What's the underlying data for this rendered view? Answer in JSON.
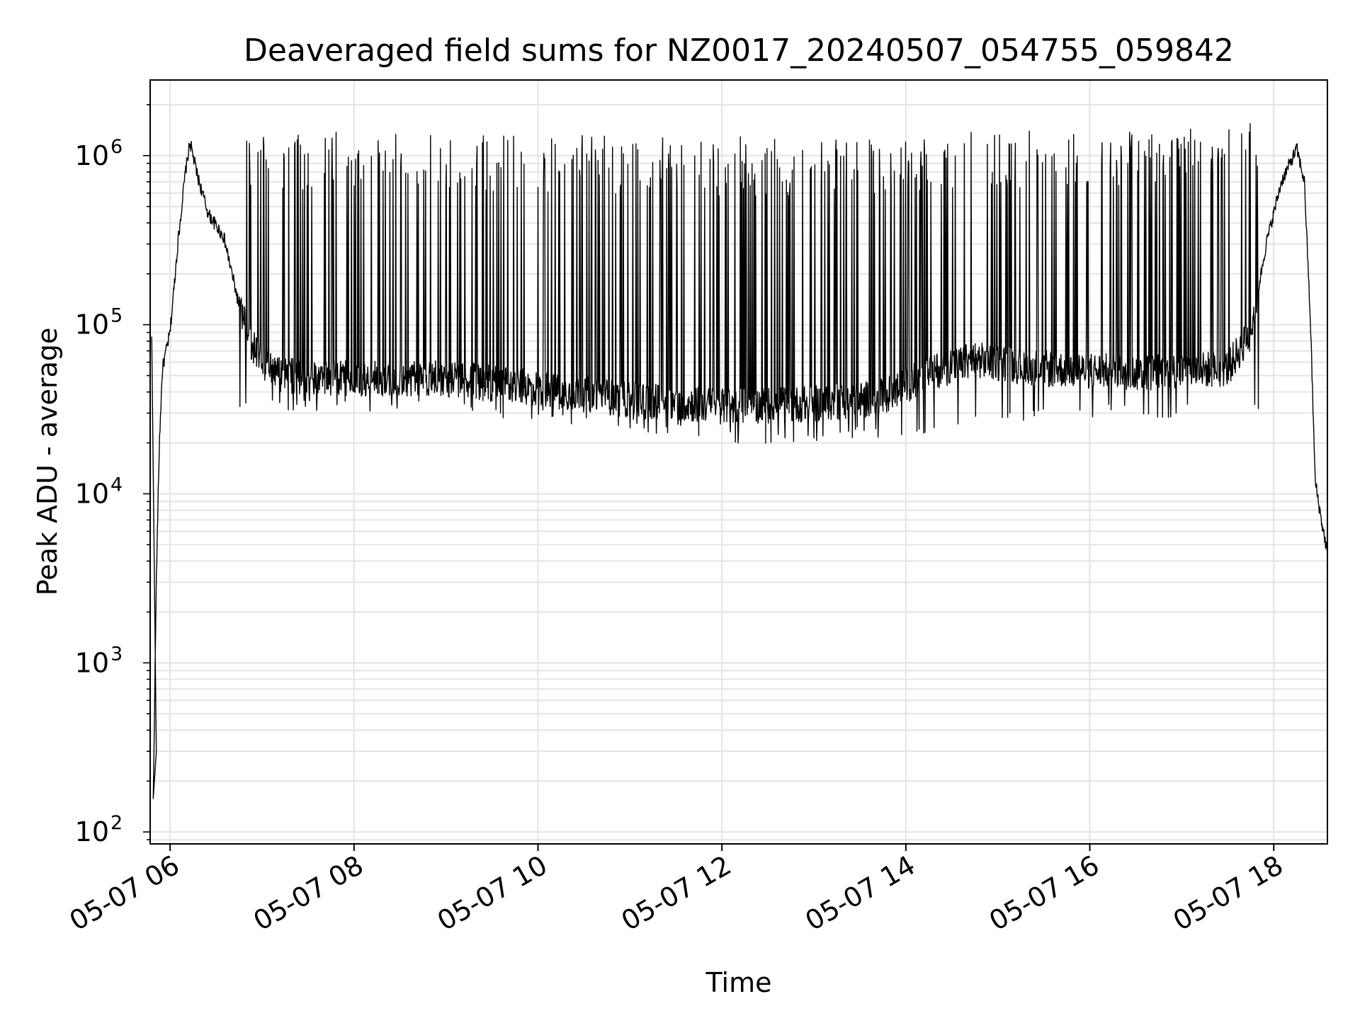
{
  "chart_data": {
    "type": "line",
    "title": "Deaveraged field sums for NZ0017_20240507_054755_059842",
    "xlabel": "Time",
    "ylabel": "Peak ADU - average",
    "yscale": "log",
    "ylim": [
      85,
      2800000
    ],
    "xlim": [
      "05-07 05:47",
      "05-07 18:35"
    ],
    "grid": true,
    "line_color": "#000000",
    "x_ticks": [
      {
        "value": "05-07 06:00",
        "label": "05-07 06"
      },
      {
        "value": "05-07 08:00",
        "label": "05-07 08"
      },
      {
        "value": "05-07 10:00",
        "label": "05-07 10"
      },
      {
        "value": "05-07 12:00",
        "label": "05-07 12"
      },
      {
        "value": "05-07 14:00",
        "label": "05-07 14"
      },
      {
        "value": "05-07 16:00",
        "label": "05-07 16"
      },
      {
        "value": "05-07 18:00",
        "label": "05-07 18"
      }
    ],
    "y_ticks": [
      {
        "value": 100,
        "base": "10",
        "exp": "2"
      },
      {
        "value": 1000,
        "base": "10",
        "exp": "3"
      },
      {
        "value": 10000,
        "base": "10",
        "exp": "4"
      },
      {
        "value": 100000,
        "base": "10",
        "exp": "5"
      },
      {
        "value": 1000000,
        "base": "10",
        "exp": "6"
      }
    ],
    "series": [
      {
        "baseline": [
          {
            "x": "05-07 05:49",
            "y": 150
          },
          {
            "x": "05-07 05:51",
            "y": 3000
          },
          {
            "x": "05-07 05:53",
            "y": 20000
          },
          {
            "x": "05-07 05:55",
            "y": 55000
          },
          {
            "x": "05-07 06:00",
            "y": 90000
          },
          {
            "x": "05-07 06:05",
            "y": 300000
          },
          {
            "x": "05-07 06:10",
            "y": 800000
          },
          {
            "x": "05-07 06:13",
            "y": 1200000
          },
          {
            "x": "05-07 06:18",
            "y": 750000
          },
          {
            "x": "05-07 06:25",
            "y": 450000
          },
          {
            "x": "05-07 06:35",
            "y": 330000
          },
          {
            "x": "05-07 06:45",
            "y": 130000
          },
          {
            "x": "05-07 06:55",
            "y": 70000
          },
          {
            "x": "05-07 07:10",
            "y": 50000
          },
          {
            "x": "05-07 08:00",
            "y": 48000
          },
          {
            "x": "05-07 09:00",
            "y": 48000
          },
          {
            "x": "05-07 10:00",
            "y": 42000
          },
          {
            "x": "05-07 11:00",
            "y": 36000
          },
          {
            "x": "05-07 12:00",
            "y": 33000
          },
          {
            "x": "05-07 13:00",
            "y": 34000
          },
          {
            "x": "05-07 13:45",
            "y": 37000
          },
          {
            "x": "05-07 14:15",
            "y": 52000
          },
          {
            "x": "05-07 14:45",
            "y": 62000
          },
          {
            "x": "05-07 15:30",
            "y": 55000
          },
          {
            "x": "05-07 16:30",
            "y": 52000
          },
          {
            "x": "05-07 17:30",
            "y": 55000
          },
          {
            "x": "05-07 17:45",
            "y": 90000
          },
          {
            "x": "05-07 17:55",
            "y": 300000
          },
          {
            "x": "05-07 18:05",
            "y": 700000
          },
          {
            "x": "05-07 18:15",
            "y": 1100000
          },
          {
            "x": "05-07 18:20",
            "y": 700000
          },
          {
            "x": "05-07 18:24",
            "y": 100000
          },
          {
            "x": "05-07 18:27",
            "y": 12000
          },
          {
            "x": "05-07 18:31",
            "y": 7000
          },
          {
            "x": "05-07 18:35",
            "y": 4500
          }
        ],
        "spike_ceiling": [
          {
            "x": "05-07 07:00",
            "y": 1400000
          },
          {
            "x": "05-07 09:00",
            "y": 1400000
          },
          {
            "x": "05-07 11:00",
            "y": 1300000
          },
          {
            "x": "05-07 13:00",
            "y": 1300000
          },
          {
            "x": "05-07 15:00",
            "y": 1400000
          },
          {
            "x": "05-07 17:00",
            "y": 1500000
          },
          {
            "x": "05-07 17:50",
            "y": 1700000
          }
        ],
        "spike_floor": [
          {
            "x": "05-07 07:00",
            "y": 30000
          },
          {
            "x": "05-07 09:00",
            "y": 30000
          },
          {
            "x": "05-07 12:30",
            "y": 19000
          },
          {
            "x": "05-07 14:00",
            "y": 22000
          },
          {
            "x": "05-07 16:00",
            "y": 28000
          }
        ]
      }
    ]
  }
}
